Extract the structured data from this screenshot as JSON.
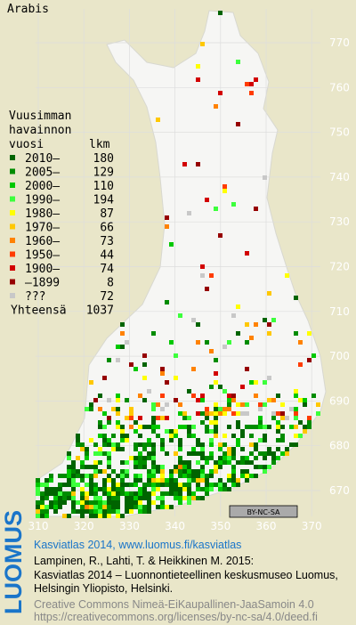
{
  "title": "Arabis",
  "legend": {
    "header": [
      "Vuusimman",
      "havainnon"
    ],
    "col_year": "vuosi",
    "col_count": "lkm",
    "rows": [
      {
        "label": "2010–",
        "count": 180,
        "color": "#006400"
      },
      {
        "label": "2005–",
        "count": 129,
        "color": "#008c00"
      },
      {
        "label": "2000–",
        "count": 110,
        "color": "#00c800"
      },
      {
        "label": "1990–",
        "count": 194,
        "color": "#3cff3c"
      },
      {
        "label": "1980–",
        "count": 87,
        "color": "#ffff00"
      },
      {
        "label": "1970–",
        "count": 66,
        "color": "#ffc800"
      },
      {
        "label": "1960–",
        "count": 73,
        "color": "#ff8200"
      },
      {
        "label": "1950–",
        "count": 44,
        "color": "#ff3c00"
      },
      {
        "label": "1900–",
        "count": 74,
        "color": "#d20000"
      },
      {
        "label": "–1899",
        "count": 8,
        "color": "#960000"
      },
      {
        "label": "???",
        "count": 72,
        "color": "#c8c8c8"
      }
    ],
    "total_label": "Yhteensä",
    "total": 1037
  },
  "y_grid_labels": [
    770,
    760,
    750,
    740,
    730,
    720,
    710,
    700,
    690,
    680,
    670
  ],
  "x_grid_labels": [
    310,
    320,
    330,
    340,
    350,
    360,
    370
  ],
  "license_badge": "BY-NC-SA",
  "footer": {
    "logo": "LUOMUS",
    "link": "Kasviatlas 2014, www.luomus.fi/kasviatlas",
    "citation": [
      "Lampinen, R., Lahti, T. & Heikkinen M. 2015:",
      "Kasviatlas 2014 – Luonnontieteellinen keskusmuseo Luomus,",
      "Helsingin Yliopisto, Helsinki."
    ],
    "license": [
      "Creative Commons Nimeä-EiKaupallinen-JaaSamoin 4.0",
      "https://creativecommons.org/licenses/by-nc-sa/4.0/deed.fi"
    ]
  }
}
